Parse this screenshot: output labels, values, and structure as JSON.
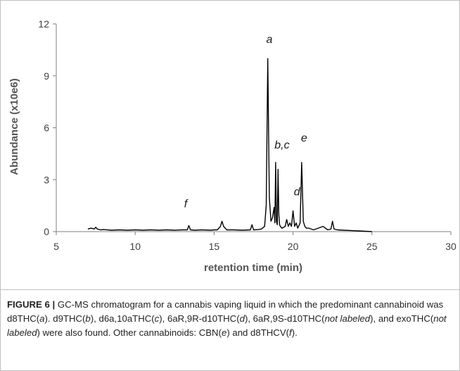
{
  "chart_data": {
    "type": "line",
    "title": "",
    "xlabel": "retention time (min)",
    "ylabel": "Abundance (x10e6)",
    "xlim": [
      5,
      30
    ],
    "ylim": [
      0,
      12
    ],
    "x_ticks": [
      5,
      10,
      15,
      20,
      25,
      30
    ],
    "y_ticks": [
      0,
      3,
      6,
      9,
      12
    ],
    "grid": false,
    "legend": "none",
    "line_color": "#000000",
    "series": [
      {
        "x": [
          7.0,
          7.2,
          7.4,
          7.5,
          7.6,
          7.8,
          8.0,
          8.5,
          9.0,
          9.5,
          10.0,
          10.5,
          11.0,
          11.5,
          12.0,
          12.5,
          13.0,
          13.3,
          13.4,
          13.5,
          13.8,
          14.2,
          14.8,
          15.0,
          15.2,
          15.4,
          15.5,
          15.6,
          15.8,
          16.2,
          16.8,
          17.3,
          17.4,
          17.5,
          17.8,
          18.0,
          18.2,
          18.3,
          18.4,
          18.5,
          18.6,
          18.7,
          18.8,
          18.85,
          18.9,
          18.95,
          19.0,
          19.05,
          19.1,
          19.15,
          19.2,
          19.3,
          19.5,
          19.6,
          19.7,
          19.8,
          19.9,
          20.0,
          20.1,
          20.2,
          20.3,
          20.45,
          20.55,
          20.65,
          20.75,
          20.85,
          21.0,
          21.3,
          21.6,
          21.9,
          22.2,
          22.4,
          22.5,
          22.6,
          22.8,
          23.2,
          24.0,
          25.0
        ],
        "y": [
          0.15,
          0.2,
          0.15,
          0.25,
          0.15,
          0.1,
          0.12,
          0.08,
          0.1,
          0.08,
          0.1,
          0.08,
          0.1,
          0.08,
          0.1,
          0.08,
          0.1,
          0.1,
          0.35,
          0.1,
          0.08,
          0.1,
          0.08,
          0.1,
          0.1,
          0.3,
          0.6,
          0.3,
          0.1,
          0.1,
          0.08,
          0.1,
          0.4,
          0.1,
          0.12,
          0.15,
          0.3,
          1.5,
          10.0,
          2.0,
          0.6,
          0.8,
          1.4,
          0.5,
          4.0,
          0.6,
          0.4,
          3.6,
          1.0,
          0.4,
          0.3,
          0.2,
          0.3,
          0.7,
          0.3,
          0.5,
          0.3,
          1.2,
          0.3,
          0.5,
          0.2,
          0.5,
          4.0,
          0.6,
          0.3,
          0.2,
          0.2,
          0.1,
          0.2,
          0.3,
          0.1,
          0.15,
          0.6,
          0.15,
          0.1,
          0.08,
          0.05,
          0.0
        ]
      }
    ],
    "annotations": [
      {
        "text": "a",
        "x": 18.5,
        "y": 10.9
      },
      {
        "text": "b,c",
        "x": 19.3,
        "y": 4.8
      },
      {
        "text": "d",
        "x": 20.25,
        "y": 2.1
      },
      {
        "text": "e",
        "x": 20.7,
        "y": 5.2
      },
      {
        "text": "f",
        "x": 13.2,
        "y": 1.4
      }
    ]
  },
  "caption": {
    "lead": "FIGURE 6 |",
    "text": " GC-MS chromatogram for a cannabis vaping liquid in which the predominant cannabinoid was d8THC(a). d9THC(b), d6a,10aTHC(c), 6aR,9R-d10THC(d), 6aR,9S-d10THC(not labeled), and exoTHC(not labeled) were also found. Other cannabinoids: CBN(e) and d8THCV(f)."
  }
}
